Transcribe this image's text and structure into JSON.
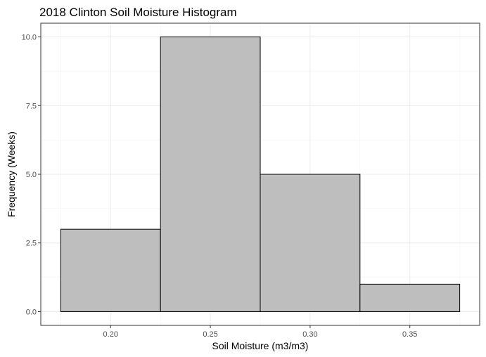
{
  "chart_data": {
    "type": "bar",
    "title": "2018 Clinton Soil Moisture Histogram",
    "xlabel": "Soil Moisture (m3/m3)",
    "ylabel": "Frequency (Weeks)",
    "bins": [
      {
        "start": 0.175,
        "end": 0.225,
        "count": 3
      },
      {
        "start": 0.225,
        "end": 0.275,
        "count": 10
      },
      {
        "start": 0.275,
        "end": 0.325,
        "count": 5
      },
      {
        "start": 0.325,
        "end": 0.375,
        "count": 1
      }
    ],
    "xlim": [
      0.165,
      0.385
    ],
    "ylim": [
      -0.5,
      10.5
    ],
    "x_ticks": [
      {
        "value": 0.2,
        "label": "0.20"
      },
      {
        "value": 0.25,
        "label": "0.25"
      },
      {
        "value": 0.3,
        "label": "0.30"
      },
      {
        "value": 0.35,
        "label": "0.35"
      }
    ],
    "y_ticks": [
      {
        "value": 0.0,
        "label": "0.0"
      },
      {
        "value": 2.5,
        "label": "2.5"
      },
      {
        "value": 5.0,
        "label": "5.0"
      },
      {
        "value": 7.5,
        "label": "7.5"
      },
      {
        "value": 10.0,
        "label": "10.0"
      }
    ],
    "grid": true,
    "bar_fill": "#bebebe",
    "bar_stroke": "#000000"
  }
}
